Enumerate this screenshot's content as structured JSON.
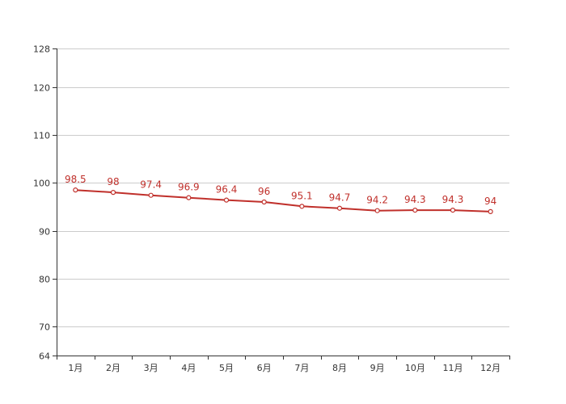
{
  "chart_data": {
    "type": "line",
    "categories": [
      "1月",
      "2月",
      "3月",
      "4月",
      "5月",
      "6月",
      "7月",
      "8月",
      "9月",
      "10月",
      "11月",
      "12月"
    ],
    "series": [
      {
        "values": [
          98.5,
          98,
          97.4,
          96.9,
          96.4,
          96,
          95.1,
          94.7,
          94.2,
          94.3,
          94.3,
          94
        ]
      }
    ],
    "data_labels": [
      "98.5",
      "98",
      "97.4",
      "96.9",
      "96.4",
      "96",
      "95.1",
      "94.7",
      "94.2",
      "94.3",
      "94.3",
      "94"
    ],
    "ylim": [
      64,
      128
    ],
    "yticks": [
      64,
      70,
      80,
      90,
      100,
      110,
      120,
      128
    ],
    "ytick_labels": [
      "64",
      "70",
      "80",
      "90",
      "100",
      "110",
      "120",
      "128"
    ],
    "grid": true,
    "line_color": "#c0302b",
    "grid_color": "#cccccc",
    "axis_color": "#333333"
  }
}
